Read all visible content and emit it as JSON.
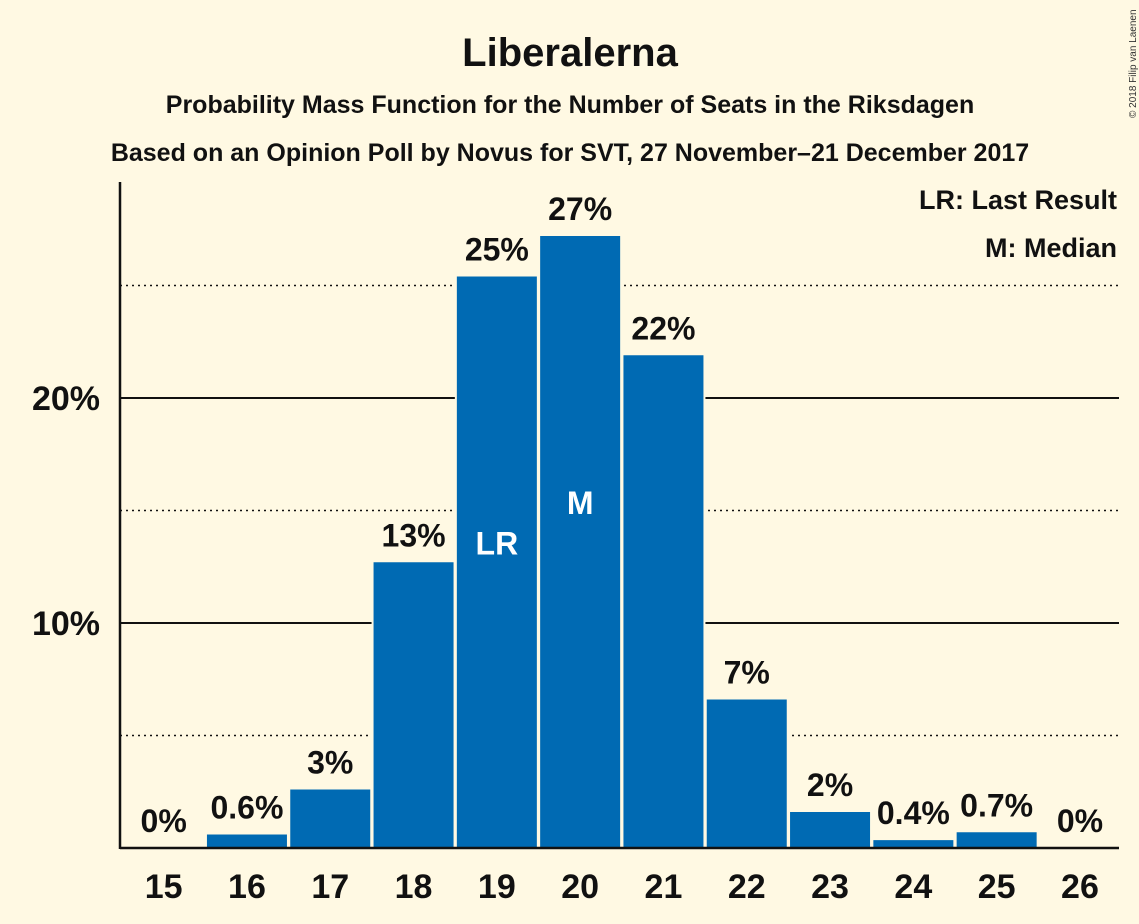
{
  "chart_data": {
    "type": "bar",
    "title": "Liberalerna",
    "subtitle": "Probability Mass Function for the Number of Seats in the Riksdagen",
    "subtitle2": "Based on an Opinion Poll by Novus for SVT, 27 November–21 December 2017",
    "categories": [
      "15",
      "16",
      "17",
      "18",
      "19",
      "20",
      "21",
      "22",
      "23",
      "24",
      "25",
      "26"
    ],
    "values": [
      0,
      0.6,
      2.6,
      12.7,
      25.4,
      27.2,
      21.9,
      6.6,
      1.6,
      0.35,
      0.7,
      0
    ],
    "value_labels": [
      "0%",
      "0.6%",
      "3%",
      "13%",
      "25%",
      "27%",
      "22%",
      "7%",
      "2%",
      "0.4%",
      "0.7%",
      "0%"
    ],
    "inner_labels": {
      "4": "LR",
      "5": "M"
    },
    "y_ticks": [
      {
        "value": 10,
        "label": "10%"
      },
      {
        "value": 20,
        "label": "20%"
      }
    ],
    "minor_gridlines": [
      5,
      15,
      25
    ],
    "ylim": [
      0,
      29.6
    ],
    "legend": [
      "LR: Last Result",
      "M: Median"
    ],
    "legend_position": "top-right",
    "copyright": "© 2018 Filip van Laenen",
    "colors": {
      "bar": "#006AB3",
      "background": "#FFF9E3",
      "text": "#111111",
      "inner_text": "#FFFFFF"
    }
  }
}
